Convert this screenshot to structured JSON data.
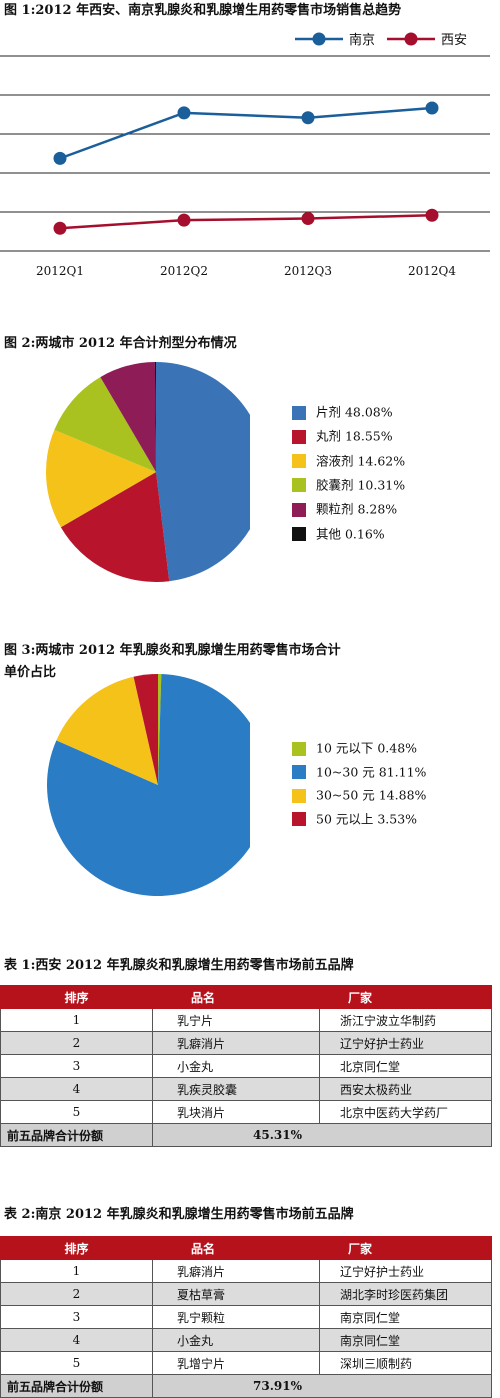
{
  "figure1": {
    "title": "图 1:2012 年西安、南京乳腺炎和乳腺增生用药零售市场销售总趋势"
  },
  "figure2": {
    "title": "图 2:两城市 2012 年合计剂型分布情况"
  },
  "figure3": {
    "title_line1": "图 3:两城市 2012 年乳腺炎和乳腺增生用药零售市场合计",
    "title_line2": "单价占比"
  },
  "colors": {
    "nanjing": "#1a5e9a",
    "xian": "#a50f2d",
    "table_header": "#b5121b"
  },
  "chart_data": [
    {
      "type": "line",
      "x": [
        "2012Q1",
        "2012Q2",
        "2012Q3",
        "2012Q4"
      ],
      "ylim": [
        0,
        6
      ],
      "grid": true,
      "y_tick_labels_shown": false,
      "legend_position": "top-right",
      "series": [
        {
          "name": "南京",
          "values": [
            2.85,
            4.25,
            4.1,
            4.4
          ],
          "color": "#1a5e9a"
        },
        {
          "name": "西安",
          "values": [
            0.7,
            0.95,
            1.0,
            1.1
          ],
          "color": "#a50f2d"
        }
      ]
    },
    {
      "type": "pie",
      "start": "12 o'clock, clockwise",
      "slices": [
        {
          "label": "片剂",
          "value": 48.08,
          "text": "48.08%",
          "color": "#3a73b6"
        },
        {
          "label": "丸剂",
          "value": 18.55,
          "text": "18.55%",
          "color": "#b8142b"
        },
        {
          "label": "溶液剂",
          "value": 14.62,
          "text": "14.62%",
          "color": "#f5c21a"
        },
        {
          "label": "胶囊剂",
          "value": 10.31,
          "text": "10.31%",
          "color": "#a9c21f"
        },
        {
          "label": "颗粒剂",
          "value": 8.28,
          "text": "8.28%",
          "color": "#8e1c57"
        },
        {
          "label": "其他",
          "value": 0.16,
          "text": "0.16%",
          "color": "#111111"
        }
      ]
    },
    {
      "type": "pie",
      "start": "12 o'clock, clockwise",
      "slices": [
        {
          "label": "10 元以下",
          "value": 0.48,
          "text": "0.48%",
          "color": "#a9c21f"
        },
        {
          "label": "10~30 元",
          "value": 81.11,
          "text": "81.11%",
          "color": "#2a7dc4"
        },
        {
          "label": "30~50 元",
          "value": 14.88,
          "text": "14.88%",
          "color": "#f5c21a"
        },
        {
          "label": "50 元以上",
          "value": 3.53,
          "text": "3.53%",
          "color": "#b8142b"
        }
      ]
    }
  ],
  "table1": {
    "title": "表 1:西安 2012 年乳腺炎和乳腺增生用药零售市场前五品牌",
    "headers": [
      "排序",
      "品名",
      "厂家"
    ],
    "rows": [
      [
        "1",
        "乳宁片",
        "浙江宁波立华制药"
      ],
      [
        "2",
        "乳癖消片",
        "辽宁好护士药业"
      ],
      [
        "3",
        "小金丸",
        "北京同仁堂"
      ],
      [
        "4",
        "乳疾灵胶囊",
        "西安太极药业"
      ],
      [
        "5",
        "乳块消片",
        "北京中医药大学药厂"
      ]
    ],
    "total_label": "前五品牌合计份额",
    "total_value": "45.31%"
  },
  "table2": {
    "title": "表 2:南京 2012 年乳腺炎和乳腺增生用药零售市场前五品牌",
    "headers": [
      "排序",
      "品名",
      "厂家"
    ],
    "rows": [
      [
        "1",
        "乳癖消片",
        "辽宁好护士药业"
      ],
      [
        "2",
        "夏枯草膏",
        "湖北李时珍医药集团"
      ],
      [
        "3",
        "乳宁颗粒",
        "南京同仁堂"
      ],
      [
        "4",
        "小金丸",
        "南京同仁堂"
      ],
      [
        "5",
        "乳增宁片",
        "深圳三顺制药"
      ]
    ],
    "total_label": "前五品牌合计份额",
    "total_value": "73.91%"
  }
}
